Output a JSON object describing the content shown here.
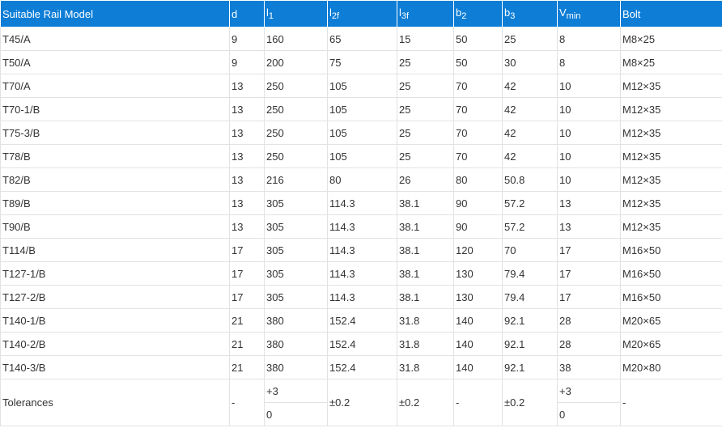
{
  "table": {
    "header": [
      {
        "text": "Suitable Rail Model"
      },
      {
        "text": "d"
      },
      {
        "text": "l",
        "sub": "1"
      },
      {
        "text": "l",
        "sub": "2f"
      },
      {
        "text": "l",
        "sub": "3f"
      },
      {
        "text": "b",
        "sub": "2"
      },
      {
        "text": "b",
        "sub": "3"
      },
      {
        "text": "V",
        "sub": "min"
      },
      {
        "text": "Bolt"
      }
    ],
    "rows": [
      [
        "T45/A",
        "9",
        "160",
        "65",
        "15",
        "50",
        "25",
        "8",
        "M8×25"
      ],
      [
        "T50/A",
        "9",
        "200",
        "75",
        "25",
        "50",
        "30",
        "8",
        "M8×25"
      ],
      [
        "T70/A",
        "13",
        "250",
        "105",
        "25",
        "70",
        "42",
        "10",
        "M12×35"
      ],
      [
        "T70-1/B",
        "13",
        "250",
        "105",
        "25",
        "70",
        "42",
        "10",
        "M12×35"
      ],
      [
        "T75-3/B",
        "13",
        "250",
        "105",
        "25",
        "70",
        "42",
        "10",
        "M12×35"
      ],
      [
        "T78/B",
        "13",
        "250",
        "105",
        "25",
        "70",
        "42",
        "10",
        "M12×35"
      ],
      [
        "T82/B",
        "13",
        "216",
        "80",
        "26",
        "80",
        "50.8",
        "10",
        "M12×35"
      ],
      [
        "T89/B",
        "13",
        "305",
        "114.3",
        "38.1",
        "90",
        "57.2",
        "13",
        "M12×35"
      ],
      [
        "T90/B",
        "13",
        "305",
        "114.3",
        "38.1",
        "90",
        "57.2",
        "13",
        "M12×35"
      ],
      [
        "T114/B",
        "17",
        "305",
        "114.3",
        "38.1",
        "120",
        "70",
        "17",
        "M16×50"
      ],
      [
        "T127-1/B",
        "17",
        "305",
        "114.3",
        "38.1",
        "130",
        "79.4",
        "17",
        "M16×50"
      ],
      [
        "T127-2/B",
        "17",
        "305",
        "114.3",
        "38.1",
        "130",
        "79.4",
        "17",
        "M16×50"
      ],
      [
        "T140-1/B",
        "21",
        "380",
        "152.4",
        "31.8",
        "140",
        "92.1",
        "28",
        "M20×65"
      ],
      [
        "T140-2/B",
        "21",
        "380",
        "152.4",
        "31.8",
        "140",
        "92.1",
        "28",
        "M20×65"
      ],
      [
        "T140-3/B",
        "21",
        "380",
        "152.4",
        "31.8",
        "140",
        "92.1",
        "38",
        "M20×80"
      ]
    ],
    "tolerances": [
      "Tolerances",
      "-",
      [
        "+3",
        "0"
      ],
      "±0.2",
      "±0.2",
      "-",
      "±0.2",
      [
        "+3",
        "0"
      ],
      "-"
    ]
  }
}
